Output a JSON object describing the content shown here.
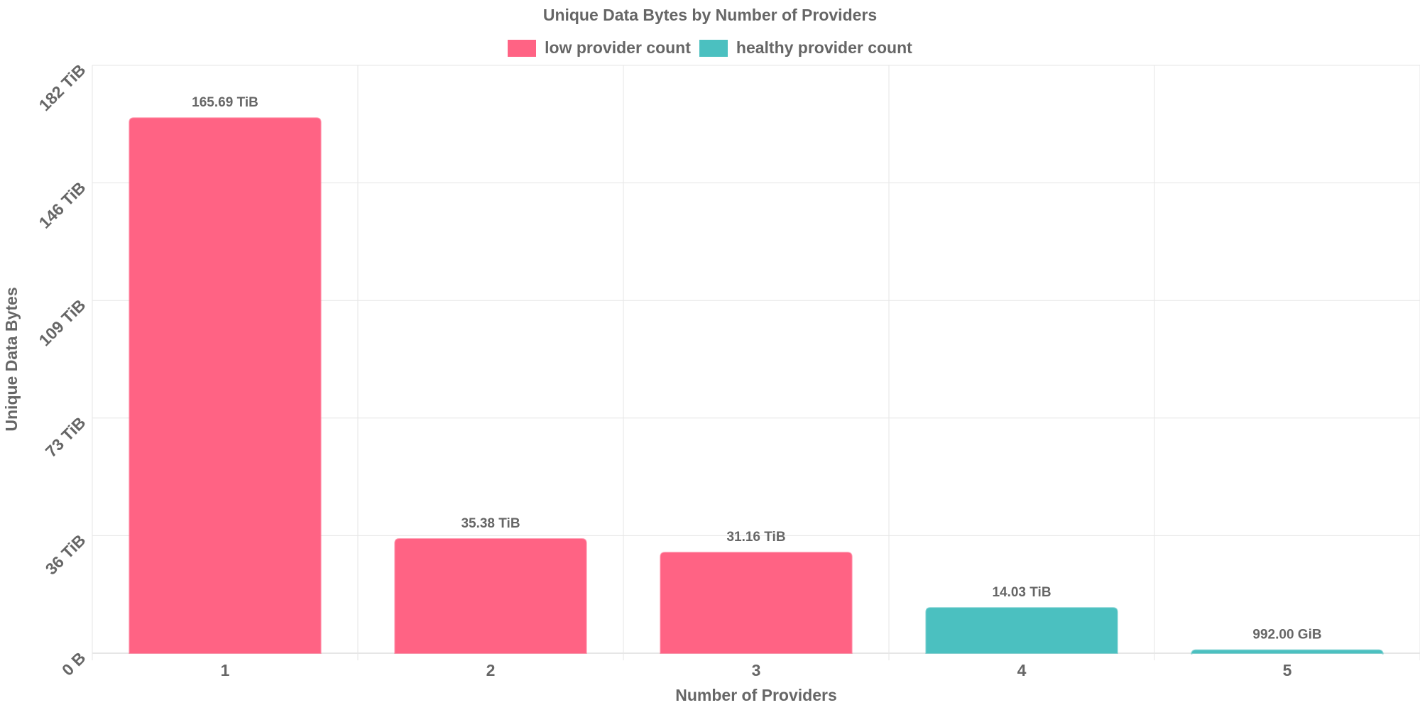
{
  "chart_data": {
    "type": "bar",
    "title": "Unique Data Bytes by Number of Providers",
    "xlabel": "Number of Providers",
    "ylabel": "Unique Data Bytes",
    "categories": [
      "1",
      "2",
      "3",
      "4",
      "5"
    ],
    "values_tib": [
      165.69,
      35.38,
      31.16,
      14.03,
      0.96875
    ],
    "value_labels": [
      "165.69 TiB",
      "35.38 TiB",
      "31.16 TiB",
      "14.03 TiB",
      "992.00 GiB"
    ],
    "series_index": [
      0,
      0,
      0,
      1,
      1
    ],
    "series": [
      {
        "name": "low provider count",
        "color": "#ff6384"
      },
      {
        "name": "healthy provider count",
        "color": "#4bc0c0"
      }
    ],
    "y_ticks": [
      0,
      36.4,
      72.8,
      109.2,
      145.6,
      182
    ],
    "y_tick_labels": [
      "0 B",
      "36 TiB",
      "73 TiB",
      "109 TiB",
      "146 TiB",
      "182 TiB"
    ],
    "ylim": [
      0,
      182
    ],
    "grid": true,
    "legend_position": "top-center"
  }
}
